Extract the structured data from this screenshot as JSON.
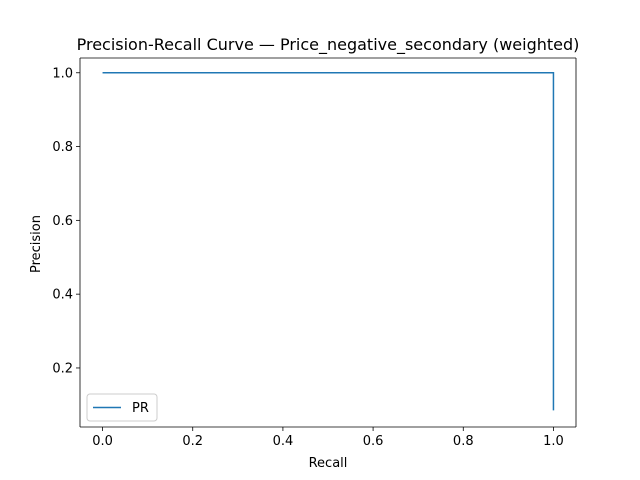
{
  "chart_data": {
    "type": "line",
    "title": "Precision-Recall Curve — Price_negative_secondary (weighted)",
    "xlabel": "Recall",
    "ylabel": "Precision",
    "xlim": [
      -0.05,
      1.05
    ],
    "ylim": [
      0.04,
      1.04
    ],
    "x_ticks": [
      0.0,
      0.2,
      0.4,
      0.6,
      0.8,
      1.0
    ],
    "x_tick_labels": [
      "0.0",
      "0.2",
      "0.4",
      "0.6",
      "0.8",
      "1.0"
    ],
    "y_ticks": [
      0.2,
      0.4,
      0.6,
      0.8,
      1.0
    ],
    "y_tick_labels": [
      "0.2",
      "0.4",
      "0.6",
      "0.8",
      "1.0"
    ],
    "grid": false,
    "legend_position": "lower-left",
    "series": [
      {
        "name": "PR",
        "color": "#1f77b4",
        "x": [
          0.0,
          1.0,
          1.0
        ],
        "y": [
          1.0,
          1.0,
          0.085
        ]
      }
    ]
  }
}
